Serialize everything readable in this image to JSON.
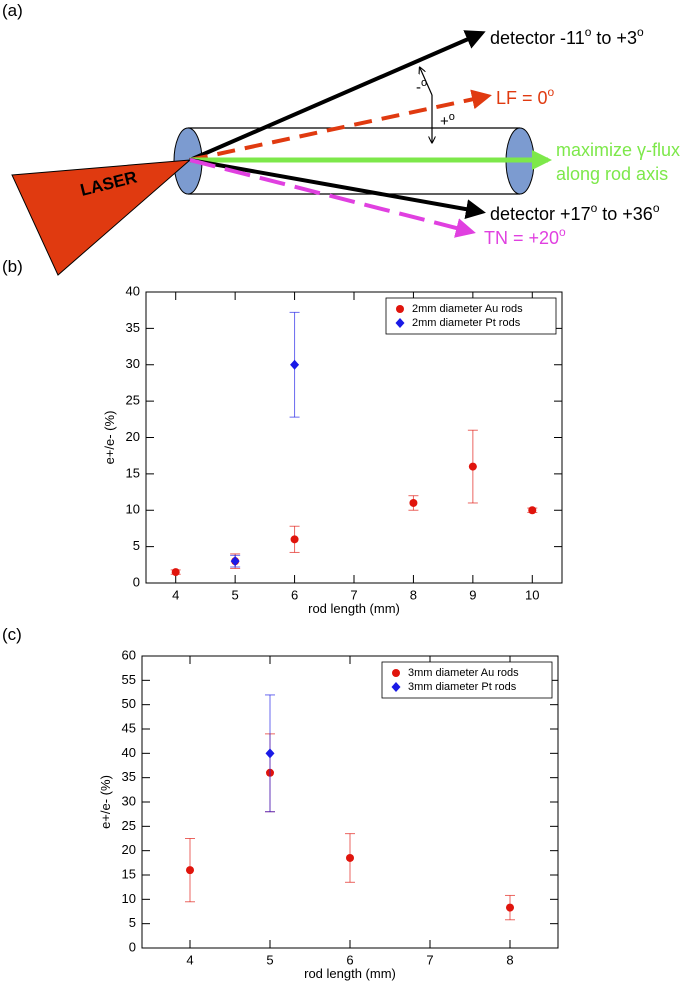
{
  "diagram": {
    "panel_label": "(a)",
    "laser": "LASER",
    "detector_upper": [
      "detector -11",
      "o",
      " to +3",
      "o"
    ],
    "lf": [
      "LF = 0",
      "o"
    ],
    "minus": [
      "-",
      "o"
    ],
    "plus": [
      "+",
      "o"
    ],
    "gamma": [
      "maximize γ-flux",
      "along rod axis"
    ],
    "detector_lower": [
      "detector +17",
      "o",
      " to +36",
      "o"
    ],
    "tn": [
      "TN = +20",
      "o"
    ]
  },
  "chart_data": [
    {
      "type": "scatter",
      "panel_label": "(b)",
      "xlabel": "rod length (mm)",
      "ylabel": "e+/e- (%)",
      "xlim": [
        3.5,
        10.5
      ],
      "xticks": [
        4,
        5,
        6,
        7,
        8,
        9,
        10
      ],
      "ylim": [
        0,
        40
      ],
      "yticks": [
        0,
        5,
        10,
        15,
        20,
        25,
        30,
        35,
        40
      ],
      "legend": "upper right",
      "series": [
        {
          "name": "2mm diameter Au rods",
          "color": "#e0140c",
          "marker": "circle",
          "x": [
            4,
            5,
            6,
            8,
            9,
            10
          ],
          "values": [
            1.5,
            3,
            6,
            11,
            16,
            10
          ],
          "errors": [
            0.3,
            1,
            1.8,
            1,
            5,
            0.3
          ]
        },
        {
          "name": "2mm diameter Pt rods",
          "color": "#1a1ae6",
          "marker": "diamond",
          "x": [
            5,
            6
          ],
          "values": [
            3,
            30
          ],
          "errors": [
            0.8,
            7.2
          ]
        }
      ]
    },
    {
      "type": "scatter",
      "panel_label": "(c)",
      "xlabel": "rod length (mm)",
      "ylabel": "e+/e- (%)",
      "xlim": [
        3.4,
        8.6
      ],
      "xticks": [
        4,
        5,
        6,
        7,
        8
      ],
      "ylim": [
        0,
        60
      ],
      "yticks": [
        0,
        5,
        10,
        15,
        20,
        25,
        30,
        35,
        40,
        45,
        50,
        55,
        60
      ],
      "legend": "upper right",
      "series": [
        {
          "name": "3mm diameter Au rods",
          "color": "#e0140c",
          "marker": "circle",
          "x": [
            4,
            5,
            6,
            8
          ],
          "values": [
            16,
            36,
            18.5,
            8.3
          ],
          "errors": [
            6.5,
            8,
            5,
            2.5
          ]
        },
        {
          "name": "3mm diameter Pt rods",
          "color": "#1a1ae6",
          "marker": "diamond",
          "x": [
            5
          ],
          "values": [
            40
          ],
          "errors": [
            12
          ]
        }
      ]
    }
  ]
}
